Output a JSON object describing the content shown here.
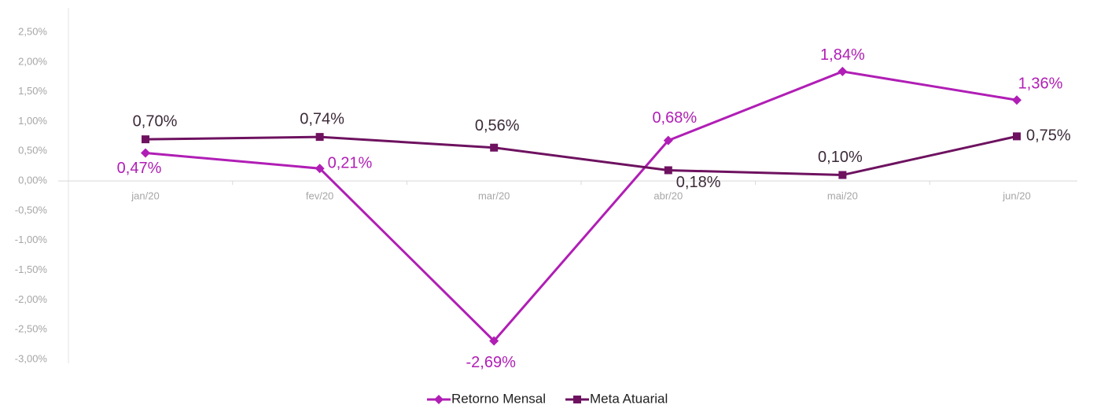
{
  "chart_data": {
    "type": "line",
    "categories": [
      "jan/20",
      "fev/20",
      "mar/20",
      "abr/20",
      "mai/20",
      "jun/20"
    ],
    "series": [
      {
        "name": "Retorno Mensal",
        "color": "#b01eb5",
        "label_color": "#b01eb5",
        "marker": "diamond",
        "values": [
          0.47,
          0.21,
          -2.69,
          0.68,
          1.84,
          1.36
        ],
        "value_labels": [
          "0,47%",
          "0,21%",
          "-2,69%",
          "0,68%",
          "1,84%",
          "1,36%"
        ]
      },
      {
        "name": "Meta Atuarial",
        "color": "#6e1260",
        "label_color": "#3c2a38",
        "marker": "square",
        "values": [
          0.7,
          0.74,
          0.56,
          0.18,
          0.1,
          0.75
        ],
        "value_labels": [
          "0,70%",
          "0,74%",
          "0,56%",
          "0,18%",
          "0,10%",
          "0,75%"
        ]
      }
    ],
    "ylim": [
      -3.0,
      2.5
    ],
    "yticks": [
      {
        "value": -3.0,
        "label": "-3,00%"
      },
      {
        "value": -2.5,
        "label": "-2,50%"
      },
      {
        "value": -2.0,
        "label": "-2,00%"
      },
      {
        "value": -1.5,
        "label": "-1,50%"
      },
      {
        "value": -1.0,
        "label": "-1,00%"
      },
      {
        "value": -0.5,
        "label": "-0,50%"
      },
      {
        "value": 0.0,
        "label": "0,00%"
      },
      {
        "value": 0.5,
        "label": "0,50%"
      },
      {
        "value": 1.0,
        "label": "1,00%"
      },
      {
        "value": 1.5,
        "label": "1,50%"
      },
      {
        "value": 2.0,
        "label": "2,00%"
      },
      {
        "value": 2.5,
        "label": "2,50%"
      }
    ],
    "grid": false,
    "legend": "bottom"
  }
}
